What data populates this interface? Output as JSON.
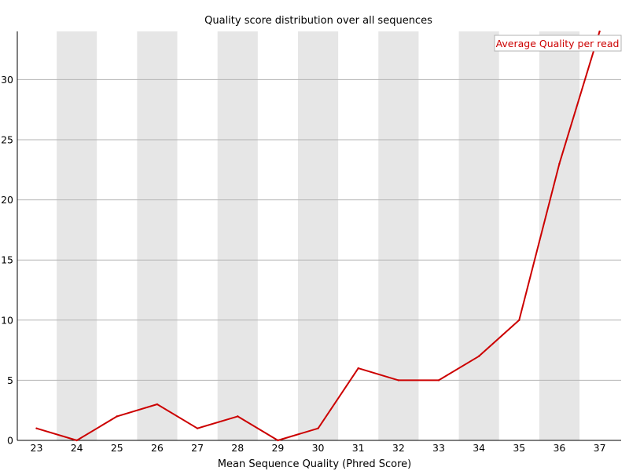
{
  "chart_data": {
    "type": "line",
    "title": "Quality score distribution over all sequences",
    "xlabel": "Mean Sequence Quality (Phred Score)",
    "ylabel": "",
    "x": [
      23,
      24,
      25,
      26,
      27,
      28,
      29,
      30,
      31,
      32,
      33,
      34,
      35,
      36,
      37
    ],
    "series": [
      {
        "name": "Average Quality per read",
        "color": "#cc0000",
        "values": [
          1,
          0,
          2,
          3,
          1,
          2,
          0,
          1,
          6,
          5,
          5,
          7,
          10,
          23,
          34
        ]
      }
    ],
    "xticks": [
      "23",
      "24",
      "25",
      "26",
      "27",
      "28",
      "29",
      "30",
      "31",
      "32",
      "33",
      "34",
      "35",
      "36",
      "37"
    ],
    "yticks": [
      "0",
      "5",
      "10",
      "15",
      "20",
      "25",
      "30"
    ],
    "ylim": [
      0,
      34
    ],
    "grid": true,
    "alternating_band_color": "#e6e6e6",
    "gridline_color": "#b3b3b3",
    "legend_position": "top-right"
  }
}
